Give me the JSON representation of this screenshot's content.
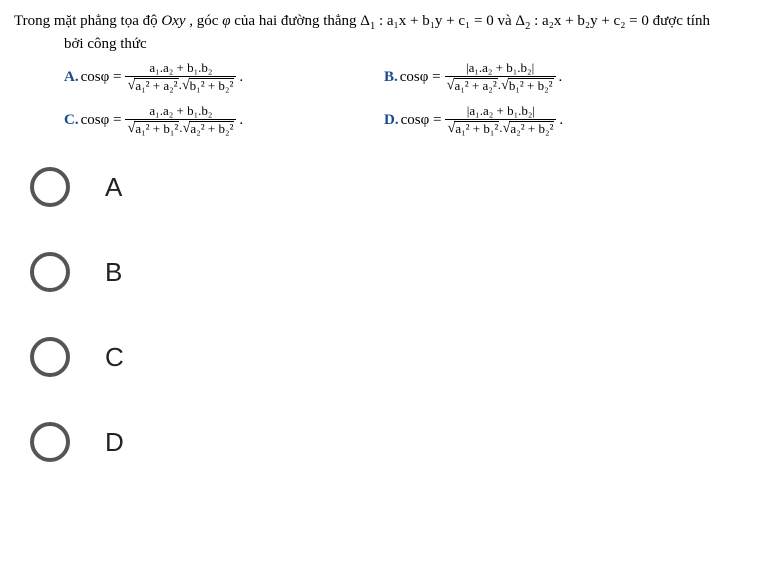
{
  "question": {
    "line1_pre": "Trong mặt phẳng tọa độ ",
    "plane": "Oxy",
    "line1_mid1": " , góc ",
    "phi": "φ",
    "line1_mid2": " của hai đường thẳng ",
    "delta1": "Δ",
    "delta1_sub": "1",
    "eq1": " : a₁x + b₁y + c₁ = 0 ",
    "va": " và ",
    "delta2": "Δ",
    "delta2_sub": "2",
    "eq2": " : a₂x + b₂y + c₂ = 0 ",
    "line1_end": "được tính",
    "line2": "bởi công thức"
  },
  "option_labels": {
    "A": "A.",
    "B": "B.",
    "C": "C.",
    "D": "D."
  },
  "prefix": "cosφ = ",
  "period": ".",
  "formulas": {
    "A": {
      "num": "a₁.a₂ + b₁.b₂",
      "den_sqrt1": "a₁² + a₂²",
      "den_sqrt2": "b₁² + b₂²",
      "abs": false
    },
    "B": {
      "num": "a₁.a₂ + b₁.b₂",
      "den_sqrt1": "a₁² + a₂²",
      "den_sqrt2": "b₁² + b₂²",
      "abs": true
    },
    "C": {
      "num": "a₁.a₂ + b₁.b₂",
      "den_sqrt1": "a₁² + b₁²",
      "den_sqrt2": "a₂² + b₂²",
      "abs": false
    },
    "D": {
      "num": "a₁.a₂ + b₁.b₂",
      "den_sqrt1": "a₁² + b₁²",
      "den_sqrt2": "a₂² + b₂²",
      "abs": true
    }
  },
  "answers": [
    "A",
    "B",
    "C",
    "D"
  ],
  "style": {
    "background": "#ffffff",
    "text_color": "#000000",
    "letter_color": "#1a4a8a",
    "radio_border_color": "#555555",
    "answer_label_color": "#222222",
    "body_font": "Times New Roman",
    "answer_font": "Arial",
    "body_fontsize": 15,
    "answer_fontsize": 26,
    "radio_size": 40,
    "radio_border": 4
  }
}
